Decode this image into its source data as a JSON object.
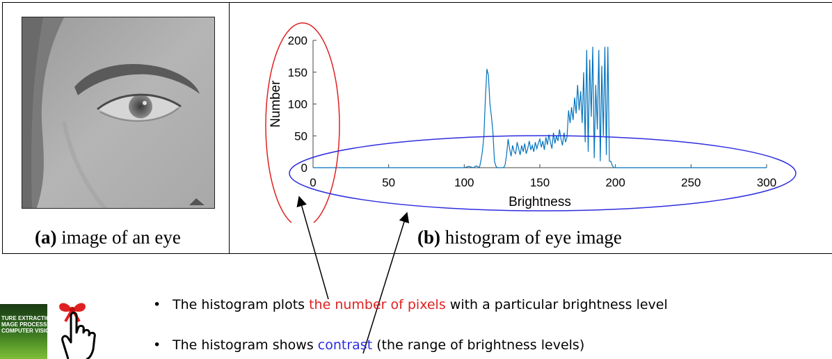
{
  "captions": {
    "a_bold": "(a)",
    "a_text": " image of an eye",
    "b_bold": "(b)",
    "b_text": " histogram of eye image"
  },
  "bullets": [
    {
      "pre": "The histogram plots ",
      "hl": "the number of pixels",
      "post": " with a particular brightness level",
      "hl_color": "#e02020"
    },
    {
      "pre": "The histogram shows ",
      "hl": "contrast",
      "post": " (the range of brightness levels)",
      "hl_color": "#2d2ddf"
    }
  ],
  "book": {
    "lines": [
      "TURE EXTRACTION",
      "MAGE PROCESSING",
      "COMPUTER VISION"
    ]
  },
  "colors": {
    "series": "#0072bd",
    "annot_red": "#e02020",
    "annot_blue": "#2d2ddf"
  },
  "chart_data": {
    "type": "line",
    "xlabel": "Brightness",
    "ylabel": "Number",
    "xlim": [
      0,
      300
    ],
    "ylim": [
      0,
      200
    ],
    "xticks": [
      0,
      50,
      100,
      150,
      200,
      250,
      300
    ],
    "yticks": [
      0,
      50,
      100,
      150,
      200
    ],
    "series": [
      {
        "x": [
          0,
          100,
          103,
          106,
          108,
          110,
          111,
          112,
          113,
          114,
          115,
          116,
          117,
          118,
          119,
          120,
          121,
          122,
          124,
          126,
          127,
          128,
          129,
          130,
          131,
          132,
          133,
          134,
          135,
          136,
          137,
          138,
          139,
          140,
          141,
          142,
          143,
          144,
          145,
          146,
          147,
          148,
          149,
          150,
          151,
          152,
          153,
          154,
          155,
          156,
          157,
          158,
          159,
          160,
          161,
          162,
          163,
          164,
          165,
          166,
          167,
          168,
          169,
          170,
          171,
          172,
          173,
          174,
          175,
          176,
          177,
          178,
          179,
          180,
          181,
          182,
          183,
          184,
          185,
          186,
          187,
          188,
          189,
          190,
          191,
          192,
          193,
          194,
          195,
          196,
          197,
          198,
          199,
          200,
          201,
          205,
          300
        ],
        "y": [
          0,
          0,
          2,
          0,
          3,
          0,
          10,
          25,
          50,
          110,
          155,
          145,
          100,
          80,
          55,
          10,
          2,
          0,
          0,
          0,
          4,
          20,
          45,
          30,
          18,
          35,
          25,
          22,
          40,
          30,
          20,
          35,
          25,
          38,
          22,
          30,
          42,
          28,
          35,
          25,
          40,
          30,
          38,
          45,
          32,
          42,
          28,
          48,
          36,
          52,
          40,
          30,
          55,
          38,
          50,
          42,
          60,
          45,
          35,
          55,
          40,
          48,
          90,
          70,
          95,
          75,
          110,
          85,
          130,
          90,
          120,
          70,
          150,
          40,
          185,
          25,
          170,
          80,
          190,
          15,
          130,
          60,
          185,
          10,
          160,
          50,
          190,
          20,
          190,
          10,
          10,
          3,
          0,
          0,
          0,
          0,
          0
        ]
      }
    ]
  }
}
